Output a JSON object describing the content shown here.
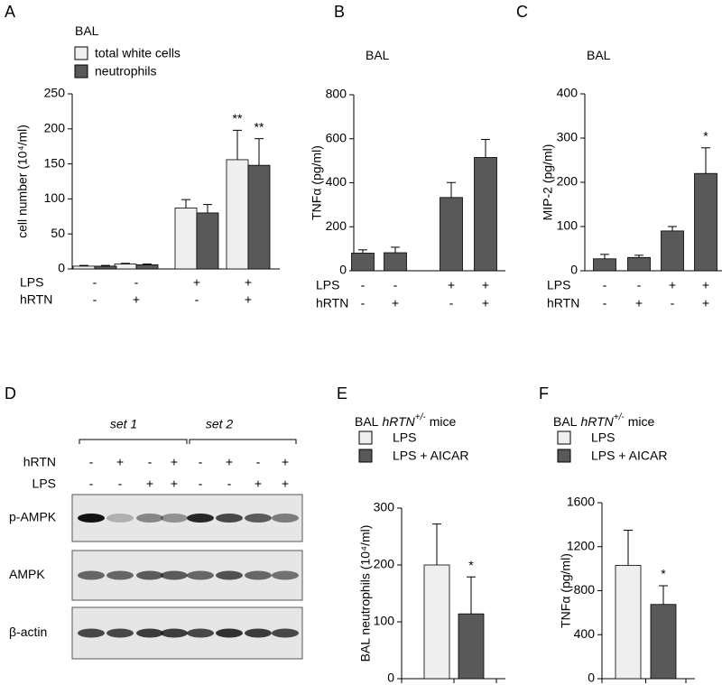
{
  "chart_data": [
    {
      "type": "bar",
      "panel": "A",
      "title": "BAL",
      "y_label": "cell number (10⁴/ml)",
      "ylim": [
        0,
        250
      ],
      "yticks": [
        0,
        50,
        100,
        150,
        200,
        250
      ],
      "conditions": [
        {
          "name": "LPS",
          "signs": [
            "-",
            "-",
            "+",
            "+"
          ]
        },
        {
          "name": "hRTN",
          "signs": [
            "-",
            "+",
            "-",
            "+"
          ]
        }
      ],
      "series": [
        {
          "name": "total white cells",
          "color": "#efefef",
          "values": [
            4,
            7,
            87,
            156
          ],
          "error": [
            1,
            1,
            12,
            42
          ],
          "annotations": [
            null,
            null,
            null,
            "**"
          ]
        },
        {
          "name": "neutrophils",
          "color": "#595959",
          "values": [
            4,
            6,
            80,
            148
          ],
          "error": [
            1,
            1,
            12,
            38
          ],
          "annotations": [
            null,
            null,
            null,
            "**"
          ]
        }
      ]
    },
    {
      "type": "bar",
      "panel": "B",
      "title": "BAL",
      "y_label": "TNFα (pg/ml)",
      "ylim": [
        0,
        800
      ],
      "yticks": [
        0,
        200,
        400,
        600,
        800
      ],
      "conditions": [
        {
          "name": "LPS",
          "signs": [
            "-",
            "-",
            "+",
            "+"
          ]
        },
        {
          "name": "hRTN",
          "signs": [
            "-",
            "+",
            "-",
            "+"
          ]
        }
      ],
      "series": [
        {
          "color": "#595959",
          "values": [
            80,
            82,
            333,
            515
          ],
          "error": [
            15,
            25,
            68,
            82
          ]
        }
      ]
    },
    {
      "type": "bar",
      "panel": "C",
      "title": "BAL",
      "y_label": "MIP-2 (pg/ml)",
      "ylim": [
        0,
        400
      ],
      "yticks": [
        0,
        100,
        200,
        300,
        400
      ],
      "conditions": [
        {
          "name": "LPS",
          "signs": [
            "-",
            "-",
            "+",
            "+"
          ]
        },
        {
          "name": "hRTN",
          "signs": [
            "-",
            "+",
            "-",
            "+"
          ]
        }
      ],
      "series": [
        {
          "color": "#595959",
          "values": [
            27,
            30,
            90,
            220
          ],
          "error": [
            10,
            5,
            10,
            58
          ],
          "annotations": [
            null,
            null,
            null,
            "*"
          ]
        }
      ]
    },
    {
      "type": "bar",
      "panel": "E",
      "title": "BAL",
      "title_italic": "hRTN",
      "title_superscript": "+/-",
      "title_suffix": "mice",
      "y_label": "BAL neutrophils  (10⁴/ml)",
      "ylim": [
        0,
        300
      ],
      "yticks": [
        0,
        100,
        200,
        300
      ],
      "series": [
        {
          "name": "LPS",
          "color": "#efefef",
          "values": [
            200
          ],
          "error": [
            72
          ]
        },
        {
          "name": "LPS + AICAR",
          "color": "#595959",
          "values": [
            114
          ],
          "error": [
            65
          ],
          "annotations": [
            "*"
          ]
        }
      ]
    },
    {
      "type": "bar",
      "panel": "F",
      "title": "BAL",
      "title_italic": "hRTN",
      "title_superscript": "+/-",
      "title_suffix": "mice",
      "y_label": "TNFα (pg/ml)",
      "ylim": [
        0,
        1600
      ],
      "yticks": [
        0,
        400,
        800,
        1200,
        1600
      ],
      "series": [
        {
          "name": "LPS",
          "color": "#efefef",
          "values": [
            1030
          ],
          "error": [
            320
          ]
        },
        {
          "name": "LPS + AICAR",
          "color": "#595959",
          "values": [
            675
          ],
          "error": [
            170
          ],
          "annotations": [
            "*"
          ]
        }
      ]
    }
  ],
  "blot": {
    "panel": "D",
    "sets": [
      "set 1",
      "set 2"
    ],
    "conditions": [
      {
        "name": "hRTN",
        "signs": [
          "-",
          "+",
          "-",
          "+",
          "-",
          "+",
          "-",
          "+"
        ]
      },
      {
        "name": "LPS",
        "signs": [
          "-",
          "-",
          "+",
          "+",
          "-",
          "-",
          "+",
          "+"
        ]
      }
    ],
    "rows": [
      "p-AMPK",
      "AMPK",
      "β-actin"
    ]
  }
}
